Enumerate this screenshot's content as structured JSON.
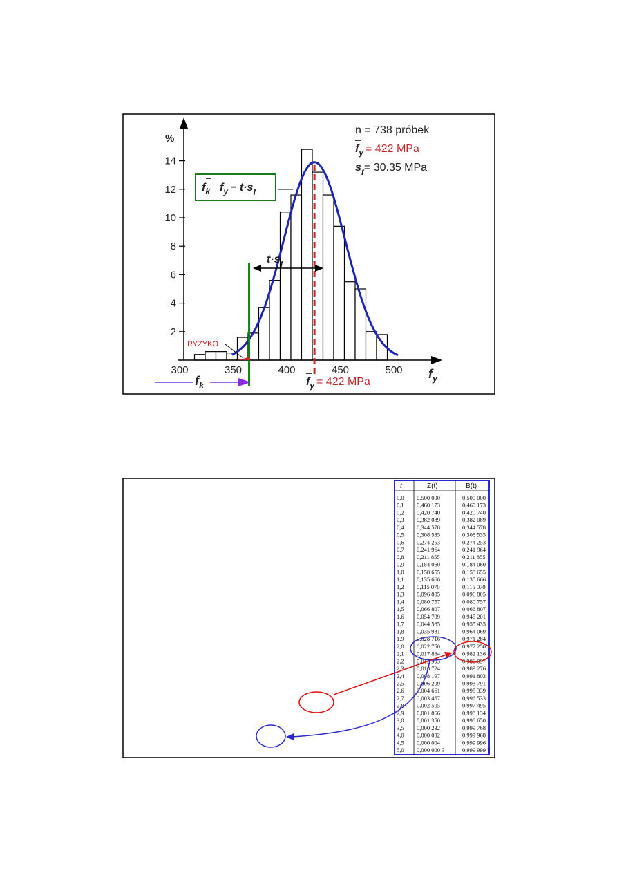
{
  "chart_data": {
    "type": "bar",
    "title": "",
    "xlabel": "f_y",
    "ylabel": "%",
    "xlim": [
      300,
      500
    ],
    "ylim": [
      0,
      15
    ],
    "x_ticks": [
      "300",
      "350",
      "400",
      "450",
      "500"
    ],
    "y_ticks": [
      "2",
      "4",
      "6",
      "8",
      "10",
      "12",
      "14"
    ],
    "bin_width": 10,
    "bin_starts": [
      310,
      320,
      330,
      340,
      350,
      360,
      370,
      380,
      390,
      400,
      410,
      420,
      430,
      440,
      450,
      460,
      470,
      480
    ],
    "values": [
      0.4,
      0.6,
      0.6,
      0.5,
      1.6,
      1.9,
      3.7,
      5.6,
      10.4,
      11.6,
      14.8,
      13.2,
      11.6,
      9.4,
      5.5,
      5.0,
      2.0,
      1.8
    ],
    "normal_curve": {
      "mean": 422,
      "peak_percent": 13.9,
      "sigma": 28.7,
      "range": [
        345,
        500
      ]
    },
    "fk_value": 361,
    "mean_value": 422,
    "annotations": {
      "n": "n = 738 próbek",
      "mean_sym": "f",
      "mean_sub": "y",
      "mean_val": "= 422 MPa",
      "sf_sym": "s",
      "sf_sub": "f",
      "sf_val": "= 30.35 MPa",
      "formula_lhs": "f",
      "formula_lhs_sub": "k",
      "formula_eq": "=",
      "formula_f": "f",
      "formula_f_sub": "y",
      "formula_rest": "− t·s",
      "formula_rest_sub": "f",
      "tsf": "t·s",
      "tsf_sub": "f",
      "risk": "RYZYKO",
      "fk": "f",
      "fk_sub": "k",
      "bottom_mean_sym": "f",
      "bottom_mean_sub": "y",
      "bottom_mean_val": "= 422 MPa",
      "xlabel_sym": "f",
      "xlabel_sub": "y"
    },
    "colors": {
      "curve": "#1c24b4",
      "mean": "#c0282a",
      "fk": "#1a7a1a",
      "arrow": "#8a2be2"
    }
  },
  "table": {
    "headers": [
      "t",
      "Z(t)",
      "B(t)"
    ],
    "rows": [
      [
        "0,0",
        "0,500 000",
        "0,500 000"
      ],
      [
        "0,1",
        "0,460 173",
        "0,460 173"
      ],
      [
        "0,2",
        "0,420 740",
        "0,420 740"
      ],
      [
        "0,3",
        "0,382 089",
        "0,382 089"
      ],
      [
        "0,4",
        "0,344 578",
        "0,344 578"
      ],
      [
        "0,5",
        "0,308 535",
        "0,308 535"
      ],
      [
        "0,6",
        "0,274 253",
        "0,274 253"
      ],
      [
        "0,7",
        "0,241 964",
        "0,241 964"
      ],
      [
        "0,8",
        "0,211 855",
        "0,211 855"
      ],
      [
        "0,9",
        "0,184 060",
        "0,184 060"
      ],
      [
        "1,0",
        "0,158 655",
        "0,158 655"
      ],
      [
        "1,1",
        "0,135 666",
        "0,135 666"
      ],
      [
        "1,2",
        "0,115 070",
        "0,115 070"
      ],
      [
        "1,3",
        "0,096 805",
        "0,096 805"
      ],
      [
        "1,4",
        "0,080 757",
        "0,080 757"
      ],
      [
        "1,5",
        "0,066 807",
        "0,066 807"
      ],
      [
        "1,6",
        "0,054 799",
        "0,945 201"
      ],
      [
        "1,7",
        "0,044 565",
        "0,955 435"
      ],
      [
        "1,8",
        "0,035 931",
        "0,964 069"
      ],
      [
        "1,9",
        "0,028 716",
        "0,971 284"
      ],
      [
        "2,0",
        "0,022 750",
        "0,977 250"
      ],
      [
        "2,1",
        "0,017 864",
        "0,982 136"
      ],
      [
        "2,2",
        "0,013 903",
        "0,986 097"
      ],
      [
        "2,3",
        "0,010 724",
        "0,989 276"
      ],
      [
        "2,4",
        "0,008 197",
        "0,991 803"
      ],
      [
        "2,5",
        "0,006 209",
        "0,993 791"
      ],
      [
        "2,6",
        "0,004 661",
        "0,995 339"
      ],
      [
        "2,7",
        "0,003 467",
        "0,996 533"
      ],
      [
        "2,8",
        "0,002 505",
        "0,997 495"
      ],
      [
        "2,9",
        "0,001 866",
        "0,998 134"
      ],
      [
        "3,0",
        "0,001 350",
        "0,998 650"
      ],
      [
        "3,5",
        "0,000 232",
        "0,999 768"
      ],
      [
        "4,0",
        "0,000 032",
        "0,999 968"
      ],
      [
        "4,5",
        "0,000 004",
        "0,999 996"
      ],
      [
        "5,0",
        "0,000 000 3",
        "0,999 999 7"
      ]
    ]
  }
}
